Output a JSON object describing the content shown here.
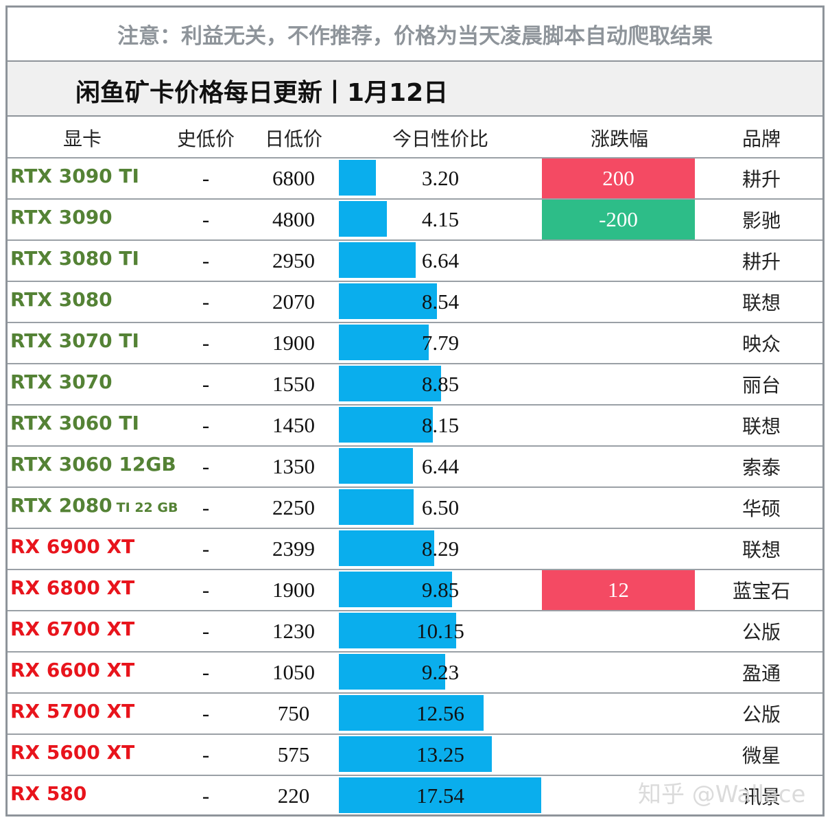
{
  "notice": "注意：利益无关，不作推荐，价格为当天凌晨脚本自动爬取结果",
  "title": "闲鱼矿卡价格每日更新丨1月12日",
  "header": [
    "显卡",
    "史低价",
    "日低价",
    "今日性价比",
    "涨跌幅",
    "品牌"
  ],
  "rows": [
    {
      "card": "RTX 3090 TI",
      "color": "#548235",
      "low_hist": "-",
      "low_day": "6800",
      "ratio": "3.20",
      "change": "200",
      "brand": "耕升"
    },
    {
      "card": "RTX 3090",
      "color": "#548235",
      "low_hist": "-",
      "low_day": "4800",
      "ratio": "4.15",
      "change": "-200",
      "brand": "影驰"
    },
    {
      "card": "RTX 3080 TI",
      "color": "#548235",
      "low_hist": "-",
      "low_day": "2950",
      "ratio": "6.64",
      "brand": "耕升"
    },
    {
      "card": "RTX 3080",
      "color": "#548235",
      "low_hist": "-",
      "low_day": "2070",
      "ratio": "8.54",
      "brand": "联想"
    },
    {
      "card": "RTX 3070 TI",
      "color": "#548235",
      "low_hist": "-",
      "low_day": "1900",
      "ratio": "7.79",
      "brand": "映众"
    },
    {
      "card": "RTX 3070",
      "color": "#548235",
      "low_hist": "-",
      "low_day": "1550",
      "ratio": "8.85",
      "brand": "丽台"
    },
    {
      "card": "RTX 3060 TI",
      "color": "#548235",
      "low_hist": "-",
      "low_day": "1450",
      "ratio": "8.15",
      "brand": "联想"
    },
    {
      "card": "RTX 3060 12GB",
      "color": "#548235",
      "low_hist": "-",
      "low_day": "1350",
      "ratio": "6.44",
      "brand": "索泰"
    },
    {
      "card": "RTX 2080",
      "card_suffix": "TI 22 GB",
      "color": "#548235",
      "low_hist": "-",
      "low_day": "2250",
      "ratio": "6.50",
      "brand": "华硕"
    },
    {
      "card": "RX 6900 XT",
      "color": "#e8141c",
      "low_hist": "-",
      "low_day": "2399",
      "ratio": "8.29",
      "brand": "联想"
    },
    {
      "card": "RX 6800 XT",
      "color": "#e8141c",
      "low_hist": "-",
      "low_day": "1900",
      "ratio": "9.85",
      "change": "12",
      "brand": "蓝宝石"
    },
    {
      "card": "RX 6700 XT",
      "color": "#e8141c",
      "low_hist": "-",
      "low_day": "1230",
      "ratio": "10.15",
      "brand": "公版"
    },
    {
      "card": "RX 6600 XT",
      "color": "#e8141c",
      "low_hist": "-",
      "low_day": "1050",
      "ratio": "9.23",
      "brand": "盈通"
    },
    {
      "card": "RX 5700 XT",
      "color": "#e8141c",
      "low_hist": "-",
      "low_day": "750",
      "ratio": "12.56",
      "brand": "公版"
    },
    {
      "card": "RX 5600 XT",
      "color": "#e8141c",
      "low_hist": "-",
      "low_day": "575",
      "ratio": "13.25",
      "brand": "微星"
    },
    {
      "card": "RX 580",
      "color": "#e8141c",
      "low_hist": "-",
      "low_day": "220",
      "ratio": "17.54",
      "brand": "讯景"
    }
  ],
  "watermark": "知乎 @Wallace"
}
